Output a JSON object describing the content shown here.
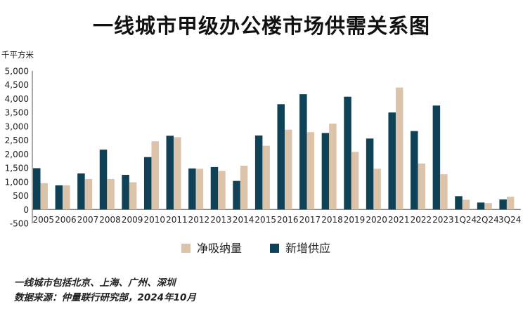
{
  "chart_data": {
    "type": "bar",
    "title": "一线城市甲级办公楼市场供需关系图",
    "ylabel": "千平方米",
    "xlabel": "",
    "ylim": [
      -500,
      5000
    ],
    "yticks": [
      "-500",
      "0",
      "500",
      "1,000",
      "1,500",
      "2,000",
      "2,500",
      "3,000",
      "3,500",
      "4,000",
      "4,500",
      "5,000"
    ],
    "categories": [
      "2005",
      "2006",
      "2007",
      "2008",
      "2009",
      "2010",
      "2011",
      "2012",
      "2013",
      "2014",
      "2015",
      "2016",
      "2017",
      "2018",
      "2019",
      "2020",
      "2021",
      "2022",
      "2023",
      "1Q24",
      "2Q24",
      "3Q24"
    ],
    "series": [
      {
        "name": "新增供应",
        "color": "#0f4257",
        "values": [
          1490,
          870,
          1300,
          2160,
          1250,
          1890,
          2660,
          1480,
          1530,
          1030,
          2670,
          3800,
          4160,
          2760,
          4070,
          2560,
          3500,
          2830,
          3750,
          480,
          250,
          360
        ]
      },
      {
        "name": "净吸纳量",
        "color": "#dcc4aa",
        "values": [
          950,
          870,
          1100,
          1100,
          980,
          2460,
          2610,
          1470,
          1390,
          1580,
          2300,
          2880,
          2790,
          3100,
          2080,
          1470,
          4400,
          1660,
          1270,
          350,
          230,
          460
        ]
      }
    ],
    "legend_placement": "bottom-center",
    "legend_order": [
      "净吸纳量",
      "新增供应"
    ],
    "grid": false
  },
  "notes": {
    "line1": "一线城市包括北京、上海、广州、深圳",
    "line2": "数据来源：仲量联行研究部，2024年10月"
  }
}
